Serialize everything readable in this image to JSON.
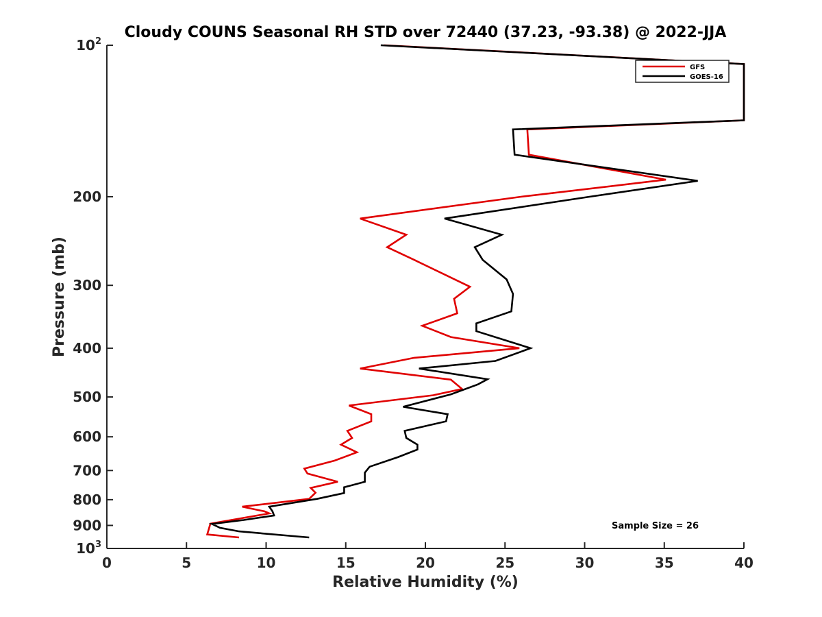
{
  "chart_data": {
    "type": "line",
    "title": "Cloudy COUNS Seasonal RH STD over 72440 (37.23, -93.38) @ 2022-JJA",
    "xlabel": "Relative Humidity (%)",
    "ylabel": "Pressure (mb)",
    "xlim": [
      0,
      40
    ],
    "ylim": [
      100,
      1000
    ],
    "y_scale": "log",
    "y_reversed": true,
    "x_ticks": [
      0,
      5,
      10,
      15,
      20,
      25,
      30,
      35,
      40
    ],
    "y_ticks": [
      {
        "value": 100,
        "base": "10",
        "exp": "2"
      },
      {
        "value": 200,
        "label": "200"
      },
      {
        "value": 300,
        "label": "300"
      },
      {
        "value": 400,
        "label": "400"
      },
      {
        "value": 500,
        "label": "500"
      },
      {
        "value": 600,
        "label": "600"
      },
      {
        "value": 700,
        "label": "700"
      },
      {
        "value": 800,
        "label": "800"
      },
      {
        "value": 900,
        "label": "900"
      },
      {
        "value": 1000,
        "base": "10",
        "exp": "3"
      }
    ],
    "series": [
      {
        "name": "GFS",
        "color": "#e00000",
        "points": [
          [
            17.4,
            100
          ],
          [
            40,
            109
          ],
          [
            40,
            141
          ],
          [
            26.4,
            147
          ],
          [
            26.5,
            165
          ],
          [
            35.1,
            185
          ],
          [
            26,
            200
          ],
          [
            15.9,
            221
          ],
          [
            18.8,
            238
          ],
          [
            17.6,
            252
          ],
          [
            19.3,
            267
          ],
          [
            22.8,
            302
          ],
          [
            21.8,
            319
          ],
          [
            22,
            341
          ],
          [
            19.8,
            361
          ],
          [
            21.6,
            380
          ],
          [
            25.9,
            400
          ],
          [
            19.3,
            418
          ],
          [
            15.9,
            439
          ],
          [
            21.6,
            462
          ],
          [
            22.3,
            482
          ],
          [
            20.5,
            496
          ],
          [
            15.2,
            520
          ],
          [
            16.6,
            541
          ],
          [
            16.6,
            559
          ],
          [
            15.1,
            584
          ],
          [
            15.4,
            603
          ],
          [
            14.7,
            622
          ],
          [
            15.7,
            644
          ],
          [
            14.3,
            669
          ],
          [
            12.4,
            694
          ],
          [
            12.6,
            710
          ],
          [
            14.5,
            737
          ],
          [
            12.8,
            758
          ],
          [
            13.1,
            775
          ],
          [
            12.7,
            797
          ],
          [
            8.5,
            826
          ],
          [
            9.9,
            844
          ],
          [
            10.2,
            852
          ],
          [
            6.5,
            893
          ],
          [
            6.4,
            916
          ],
          [
            6.3,
            938
          ],
          [
            8.3,
            951
          ]
        ]
      },
      {
        "name": "GOES-16",
        "color": "#000000",
        "points": [
          [
            17.2,
            100
          ],
          [
            40,
            109
          ],
          [
            40,
            141
          ],
          [
            25.5,
            147
          ],
          [
            25.6,
            165
          ],
          [
            37.1,
            186
          ],
          [
            30.3,
            200
          ],
          [
            21.2,
            221
          ],
          [
            24.8,
            238
          ],
          [
            23.1,
            252
          ],
          [
            23.6,
            267
          ],
          [
            25.1,
            292
          ],
          [
            25.5,
            312
          ],
          [
            25.4,
            338
          ],
          [
            23.2,
            357
          ],
          [
            23.2,
            370
          ],
          [
            26.6,
            400
          ],
          [
            24.4,
            424
          ],
          [
            19.6,
            439
          ],
          [
            23.9,
            461
          ],
          [
            23.3,
            472
          ],
          [
            21.6,
            494
          ],
          [
            18.6,
            523
          ],
          [
            21.4,
            541
          ],
          [
            21.3,
            559
          ],
          [
            18.7,
            584
          ],
          [
            18.8,
            603
          ],
          [
            19.5,
            622
          ],
          [
            19.5,
            636
          ],
          [
            18.3,
            658
          ],
          [
            16.5,
            688
          ],
          [
            16.2,
            707
          ],
          [
            16.2,
            737
          ],
          [
            14.9,
            756
          ],
          [
            14.9,
            776
          ],
          [
            13.2,
            797
          ],
          [
            10.2,
            826
          ],
          [
            10.4,
            844
          ],
          [
            10.5,
            860
          ],
          [
            8.6,
            878
          ],
          [
            6.6,
            894
          ],
          [
            7.1,
            910
          ],
          [
            8.3,
            925
          ],
          [
            12.7,
            951
          ]
        ]
      }
    ],
    "legend": {
      "position": "top-right",
      "entries": [
        "GFS",
        "GOES-16"
      ]
    },
    "annotations": [
      {
        "text": "Sample Size = 26",
        "position": "bottom-right"
      }
    ],
    "grid": false
  }
}
